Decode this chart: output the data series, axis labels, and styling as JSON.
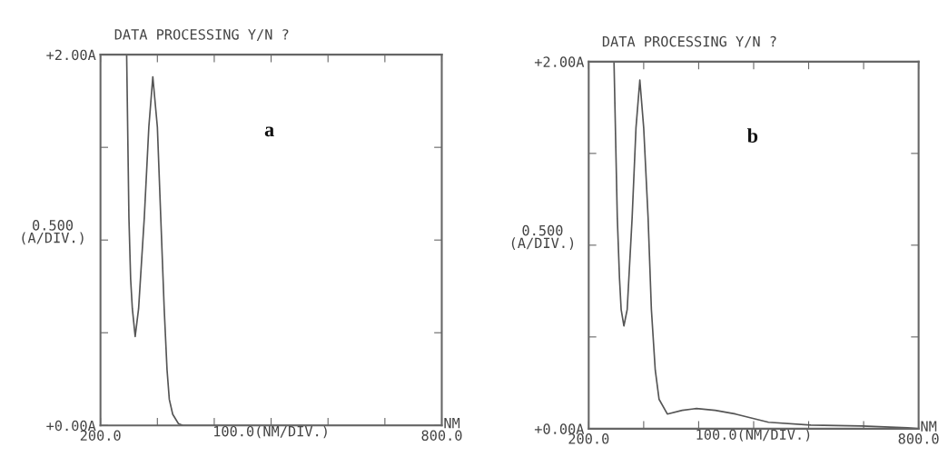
{
  "chart_data": [
    {
      "type": "line",
      "title": "DATA PROCESSING Y/N ?",
      "xlabel": "100.0(NM/DIV.)",
      "ylabel": "0.500\n(A/DIV.)",
      "annotations": [
        "a",
        "NM"
      ],
      "x": [
        246,
        250,
        253,
        256,
        261,
        267,
        277,
        285,
        292,
        300,
        306,
        312,
        317,
        321,
        327,
        337,
        345,
        800
      ],
      "series": [
        {
          "color": "#555555",
          "values": [
            2.0,
            1.12,
            0.79,
            0.63,
            0.48,
            0.63,
            1.12,
            1.61,
            1.88,
            1.61,
            1.12,
            0.63,
            0.3,
            0.14,
            0.06,
            0.01,
            0.0,
            0.0
          ]
        }
      ],
      "xlim": [
        200,
        800
      ],
      "xticks": [
        {
          "value": 200,
          "label": "200.0"
        },
        {
          "value": 300,
          "label": null
        },
        {
          "value": 400,
          "label": null
        },
        {
          "value": 500,
          "label": null
        },
        {
          "value": 600,
          "label": null
        },
        {
          "value": 700,
          "label": null
        },
        {
          "value": 800,
          "label": "800.0"
        }
      ],
      "ylim": [
        0,
        2
      ],
      "yticks": [
        {
          "value": 0,
          "label": "+0.00A"
        },
        {
          "value": 0.5,
          "label": null
        },
        {
          "value": 1,
          "label": null
        },
        {
          "value": 1.5,
          "label": null
        },
        {
          "value": 2,
          "label": "+2.00A"
        }
      ],
      "grid": false,
      "legend": false,
      "marker": "none",
      "line_style": "solid"
    },
    {
      "type": "line",
      "title": "DATA PROCESSING Y/N ?",
      "xlabel": "100.0(NM/DIV.)",
      "ylabel": "0.500\n(A/DIV.)",
      "annotations": [
        "b",
        "NM"
      ],
      "x": [
        246,
        252,
        256,
        259,
        264,
        270,
        279,
        286,
        293,
        300,
        308,
        314,
        321,
        328,
        343,
        370,
        396,
        430,
        467,
        527,
        604,
        697,
        780,
        800
      ],
      "series": [
        {
          "color": "#555555",
          "values": [
            2.0,
            1.15,
            0.82,
            0.65,
            0.56,
            0.65,
            1.15,
            1.64,
            1.9,
            1.64,
            1.15,
            0.65,
            0.32,
            0.16,
            0.08,
            0.1,
            0.11,
            0.1,
            0.08,
            0.035,
            0.02,
            0.015,
            0.005,
            0.0
          ]
        }
      ],
      "xlim": [
        200,
        800
      ],
      "xticks": [
        {
          "value": 200,
          "label": "200.0"
        },
        {
          "value": 300,
          "label": null
        },
        {
          "value": 400,
          "label": null
        },
        {
          "value": 500,
          "label": null
        },
        {
          "value": 600,
          "label": null
        },
        {
          "value": 700,
          "label": null
        },
        {
          "value": 800,
          "label": "800.0"
        }
      ],
      "ylim": [
        0,
        2
      ],
      "yticks": [
        {
          "value": 0,
          "label": "+0.00A"
        },
        {
          "value": 0.5,
          "label": null
        },
        {
          "value": 1,
          "label": null
        },
        {
          "value": 1.5,
          "label": null
        },
        {
          "value": 2,
          "label": "+2.00A"
        }
      ],
      "grid": false,
      "legend": false,
      "marker": "none",
      "line_style": "solid"
    }
  ]
}
